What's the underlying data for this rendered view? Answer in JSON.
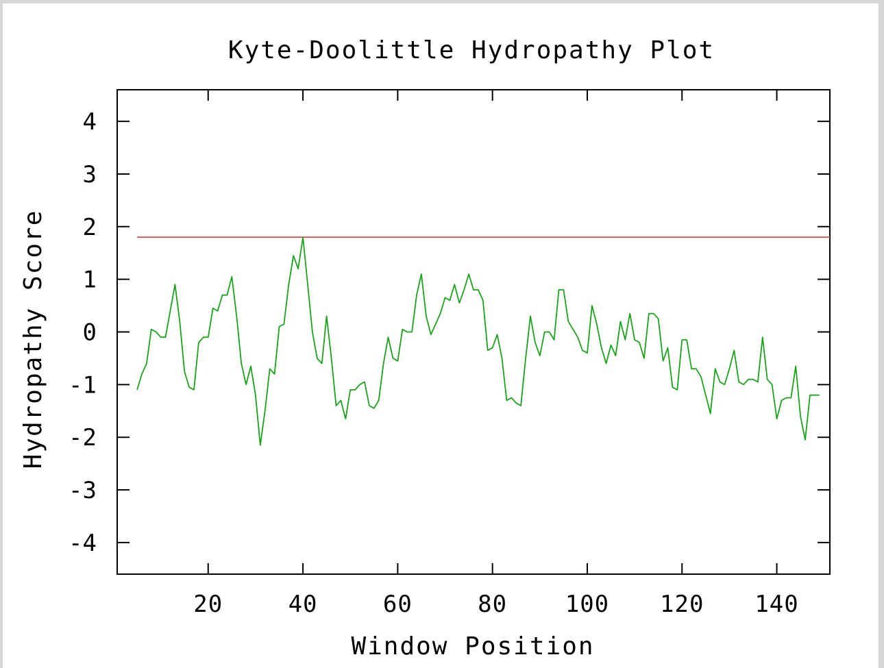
{
  "colors": {
    "series": "#1aa31a",
    "threshold": "#e63b3b",
    "axis": "#000000",
    "background": "#ffffff",
    "outer": "#d6d6d6"
  },
  "chart_data": {
    "type": "line",
    "title": "Kyte-Doolittle Hydropathy Plot",
    "xlabel": "Window Position",
    "ylabel": "Hydropathy Score",
    "xlim": [
      0.8,
      151.2
    ],
    "ylim": [
      -4.6,
      4.6
    ],
    "xticks": [
      20,
      40,
      60,
      80,
      100,
      120,
      140
    ],
    "xtick_labels": [
      "20",
      "40",
      "60",
      "80",
      "100",
      "120",
      "140"
    ],
    "yticks": [
      -4,
      -3,
      -2,
      -1,
      0,
      1,
      2,
      3,
      4
    ],
    "ytick_labels": [
      "-4",
      "-3",
      "-2",
      "-1",
      "0",
      "1",
      "2",
      "3",
      "4"
    ],
    "grid": false,
    "threshold": {
      "y": 1.8,
      "x_start": 5,
      "x_end": 151.2
    },
    "series": [
      {
        "x": [
          5,
          6,
          7,
          8,
          9,
          10,
          11,
          12,
          13,
          14,
          15,
          16,
          17,
          18,
          19,
          20,
          21,
          22,
          23,
          24,
          25,
          26,
          27,
          28,
          29,
          30,
          31,
          32,
          33,
          34,
          35,
          36,
          37,
          38,
          39,
          40,
          41,
          42,
          43,
          44,
          45,
          46,
          47,
          48,
          49,
          50,
          51,
          52,
          53,
          54,
          55,
          56,
          57,
          58,
          59,
          60,
          61,
          62,
          63,
          64,
          65,
          66,
          67,
          68,
          69,
          70,
          71,
          72,
          73,
          74,
          75,
          76,
          77,
          78,
          79,
          80,
          81,
          82,
          83,
          84,
          85,
          86,
          87,
          88,
          89,
          90,
          91,
          92,
          93,
          94,
          95,
          96,
          97,
          98,
          99,
          100,
          101,
          102,
          103,
          104,
          105,
          106,
          107,
          108,
          109,
          110,
          111,
          112,
          113,
          114,
          115,
          116,
          117,
          118,
          119,
          120,
          121,
          122,
          123,
          124,
          125,
          126,
          127,
          128,
          129,
          130,
          131,
          132,
          133,
          134,
          135,
          136,
          137,
          138,
          139,
          140,
          141,
          142,
          143,
          144,
          145,
          146,
          147,
          148,
          149
        ],
        "y": [
          -1.1,
          -0.8,
          -0.6,
          0.05,
          0.0,
          -0.1,
          -0.1,
          0.4,
          0.9,
          0.2,
          -0.75,
          -1.05,
          -1.1,
          -0.2,
          -0.1,
          -0.1,
          0.45,
          0.4,
          0.7,
          0.7,
          1.05,
          0.3,
          -0.6,
          -1.0,
          -0.65,
          -1.2,
          -2.15,
          -1.5,
          -0.7,
          -0.8,
          0.1,
          0.15,
          0.9,
          1.45,
          1.2,
          1.8,
          0.9,
          0.0,
          -0.5,
          -0.6,
          0.3,
          -0.5,
          -1.4,
          -1.3,
          -1.65,
          -1.1,
          -1.1,
          -1.0,
          -0.95,
          -1.4,
          -1.45,
          -1.3,
          -0.6,
          -0.1,
          -0.5,
          -0.55,
          0.05,
          0.0,
          0.0,
          0.7,
          1.1,
          0.3,
          -0.05,
          0.15,
          0.35,
          0.65,
          0.6,
          0.9,
          0.55,
          0.8,
          1.1,
          0.8,
          0.8,
          0.6,
          -0.35,
          -0.3,
          -0.05,
          -0.5,
          -1.3,
          -1.25,
          -1.35,
          -1.4,
          -0.5,
          0.3,
          -0.2,
          -0.45,
          0.0,
          0.0,
          -0.15,
          0.8,
          0.8,
          0.2,
          0.05,
          -0.1,
          -0.35,
          -0.4,
          0.5,
          0.15,
          -0.3,
          -0.6,
          -0.25,
          -0.45,
          0.2,
          -0.15,
          0.35,
          -0.15,
          -0.2,
          -0.5,
          0.35,
          0.35,
          0.25,
          -0.55,
          -0.3,
          -1.05,
          -1.1,
          -0.15,
          -0.15,
          -0.7,
          -0.7,
          -0.85,
          -1.2,
          -1.55,
          -0.7,
          -0.95,
          -1.0,
          -0.7,
          -0.35,
          -0.95,
          -1.0,
          -0.9,
          -0.9,
          -0.95,
          -0.1,
          -0.9,
          -1.0,
          -1.65,
          -1.3,
          -1.25,
          -1.25,
          -0.65,
          -1.6,
          -2.05,
          -1.2,
          -1.2,
          -1.2
        ]
      }
    ]
  }
}
